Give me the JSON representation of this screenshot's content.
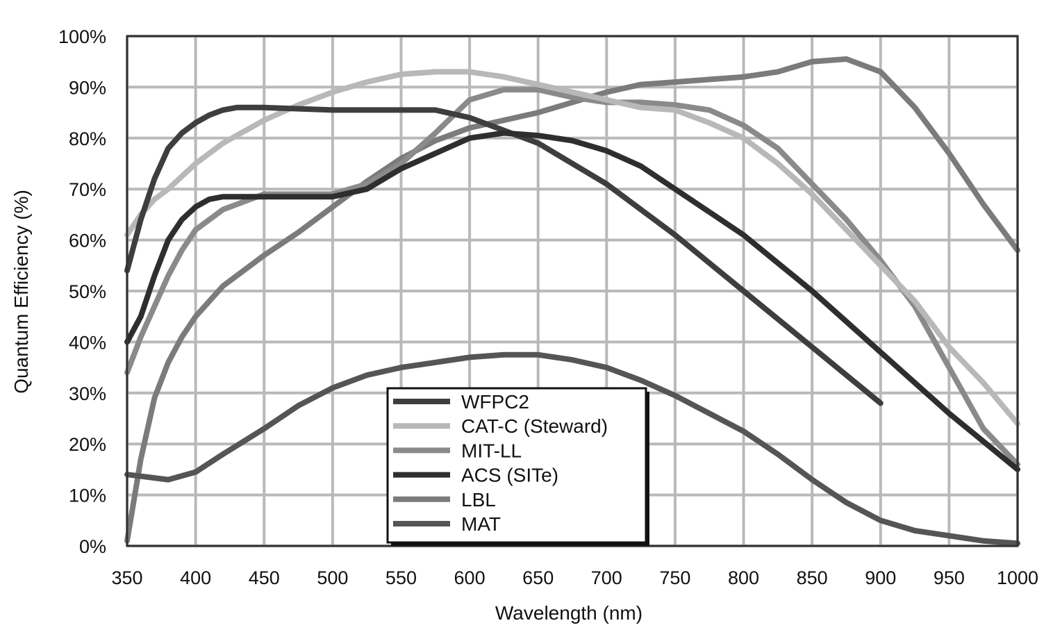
{
  "chart_data": {
    "type": "line",
    "title": "",
    "xlabel": "Wavelength (nm)",
    "ylabel": "Quantum Efficiency (%)",
    "xlim": [
      350,
      1000
    ],
    "ylim": [
      0,
      100
    ],
    "xticks": [
      350,
      400,
      450,
      500,
      550,
      600,
      650,
      700,
      750,
      800,
      850,
      900,
      950,
      1000
    ],
    "xtick_labels": [
      "350",
      "400",
      "450",
      "500",
      "550",
      "600",
      "650",
      "700",
      "750",
      "800",
      "850",
      "900",
      "950",
      "1000"
    ],
    "yticks": [
      0,
      10,
      20,
      30,
      40,
      50,
      60,
      70,
      80,
      90,
      100
    ],
    "ytick_labels": [
      "0%",
      "10%",
      "20%",
      "30%",
      "40%",
      "50%",
      "60%",
      "70%",
      "80%",
      "90%",
      "100%"
    ],
    "grid": true,
    "legend_position": "bottom-center",
    "series": [
      {
        "name": "WFPC2",
        "color": "#3e3e3e",
        "x": [
          350,
          360,
          370,
          380,
          390,
          400,
          410,
          420,
          430,
          450,
          500,
          550,
          575,
          600,
          650,
          700,
          750,
          800,
          850,
          900
        ],
        "y": [
          54,
          64,
          72,
          78,
          81,
          83,
          84.5,
          85.5,
          86,
          86,
          85.5,
          85.5,
          85.5,
          84,
          79,
          71,
          61,
          50,
          39,
          28
        ]
      },
      {
        "name": "CAT-C (Steward)",
        "color": "#b8b8b8",
        "x": [
          350,
          360,
          370,
          380,
          400,
          420,
          450,
          475,
          500,
          525,
          550,
          575,
          600,
          625,
          650,
          675,
          700,
          725,
          750,
          775,
          800,
          825,
          850,
          875,
          900,
          925,
          950,
          975,
          1000
        ],
        "y": [
          61,
          65,
          68,
          70,
          75,
          79,
          83.5,
          86.5,
          89,
          91,
          92.5,
          93,
          93,
          92,
          90.5,
          89,
          87.5,
          86,
          85.5,
          83,
          80,
          75,
          69,
          62,
          55,
          48,
          39,
          32,
          24
        ]
      },
      {
        "name": "MIT-LL",
        "color": "#8a8a8a",
        "x": [
          350,
          360,
          370,
          380,
          390,
          400,
          420,
          450,
          475,
          500,
          525,
          550,
          575,
          600,
          625,
          650,
          675,
          700,
          725,
          750,
          775,
          800,
          825,
          850,
          875,
          900,
          925,
          950,
          975,
          1000
        ],
        "y": [
          34,
          41,
          47,
          53,
          58,
          62,
          66,
          69,
          69,
          69,
          71,
          75,
          81,
          87.5,
          89.5,
          89.5,
          88,
          87,
          87,
          86.5,
          85.5,
          82.5,
          78,
          71,
          64,
          56,
          47,
          35,
          23,
          16
        ]
      },
      {
        "name": "ACS (SITe)",
        "color": "#2e2e2e",
        "x": [
          350,
          360,
          370,
          380,
          390,
          400,
          410,
          420,
          430,
          450,
          475,
          500,
          525,
          550,
          575,
          600,
          625,
          650,
          675,
          700,
          725,
          750,
          775,
          800,
          825,
          850,
          875,
          900,
          925,
          950,
          975,
          1000
        ],
        "y": [
          40,
          45,
          53,
          60,
          64,
          66.5,
          68,
          68.5,
          68.5,
          68.5,
          68.5,
          68.5,
          70,
          74,
          77,
          80,
          81,
          80.5,
          79.5,
          77.5,
          74.5,
          70,
          65.5,
          61,
          55.5,
          50,
          44,
          38,
          32,
          26,
          20.5,
          15
        ]
      },
      {
        "name": "LBL",
        "color": "#7b7b7b",
        "x": [
          350,
          360,
          370,
          380,
          390,
          400,
          420,
          450,
          475,
          500,
          525,
          550,
          575,
          600,
          625,
          650,
          675,
          700,
          725,
          750,
          775,
          800,
          825,
          850,
          875,
          900,
          925,
          950,
          975,
          1000
        ],
        "y": [
          1,
          17,
          29,
          36,
          41,
          45,
          51,
          57,
          61.5,
          66.5,
          71.5,
          76,
          79.5,
          82,
          83.5,
          85,
          87,
          89,
          90.5,
          91,
          91.5,
          92,
          93,
          95,
          95.5,
          93,
          86,
          77,
          67,
          58
        ]
      },
      {
        "name": "MAT",
        "color": "#555555",
        "x": [
          350,
          365,
          380,
          400,
          420,
          450,
          475,
          500,
          525,
          550,
          575,
          600,
          625,
          650,
          675,
          700,
          725,
          750,
          775,
          800,
          825,
          850,
          875,
          900,
          925,
          950,
          975,
          1000
        ],
        "y": [
          14,
          13.5,
          13,
          14.5,
          18,
          23,
          27.5,
          31,
          33.5,
          35,
          36,
          37,
          37.5,
          37.5,
          36.5,
          35,
          32.5,
          29.5,
          26,
          22.5,
          18,
          13,
          8.5,
          5,
          3,
          2,
          1,
          0.5
        ]
      }
    ]
  }
}
